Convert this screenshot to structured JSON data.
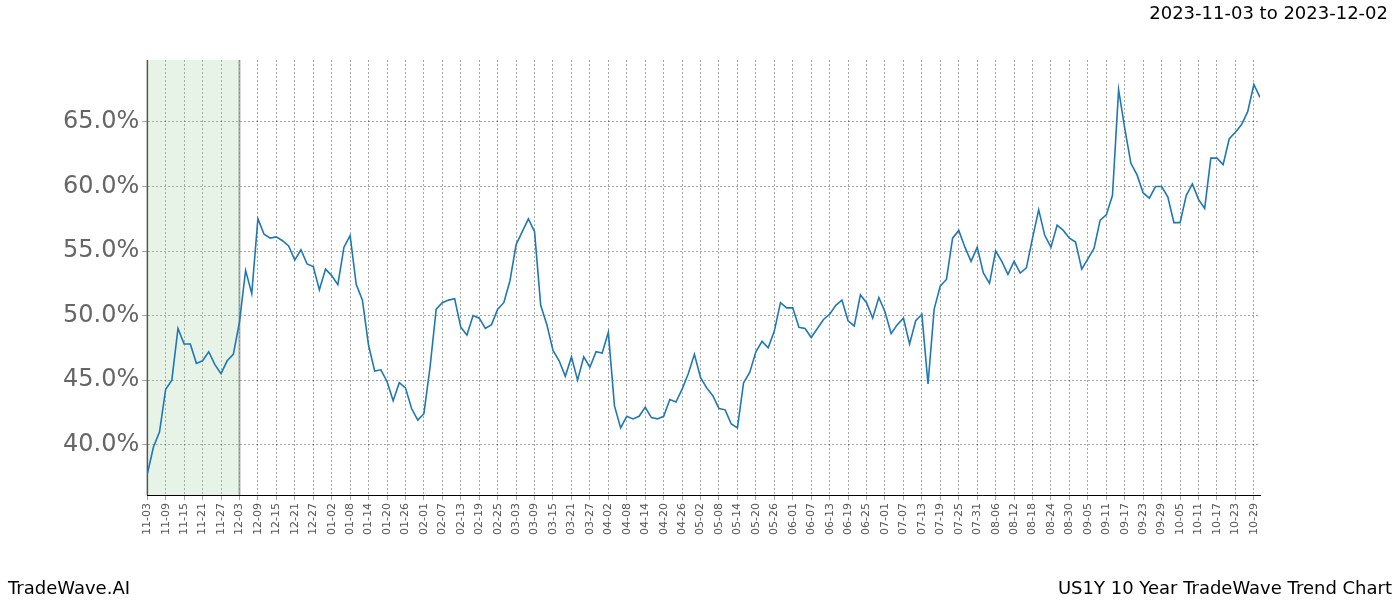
{
  "chart_data": {
    "type": "line",
    "title": "2023-11-03 to 2023-12-02",
    "footer_left": "TradeWave.AI",
    "footer_right": "US1Y 10 Year TradeWave Trend Chart",
    "shaded_range": [
      "11-03",
      "12-03"
    ],
    "color": "#1f77b4",
    "categories": [
      "11-03",
      null,
      null,
      "11-09",
      null,
      null,
      "11-15",
      null,
      null,
      "11-21",
      null,
      null,
      "11-27",
      null,
      null,
      "12-03",
      null,
      null,
      "12-09",
      null,
      null,
      "12-15",
      null,
      null,
      "12-21",
      null,
      null,
      "12-27",
      null,
      null,
      "01-02",
      null,
      null,
      "01-08",
      null,
      null,
      "01-14",
      null,
      null,
      "01-20",
      null,
      null,
      "01-26",
      null,
      null,
      "02-01",
      null,
      null,
      "02-07",
      null,
      null,
      "02-13",
      null,
      null,
      "02-19",
      null,
      null,
      "02-25",
      null,
      null,
      "03-03",
      null,
      null,
      "03-09",
      null,
      null,
      "03-15",
      null,
      null,
      "03-21",
      null,
      null,
      "03-27",
      null,
      null,
      "04-02",
      null,
      null,
      "04-08",
      null,
      null,
      "04-14",
      null,
      null,
      "04-20",
      null,
      null,
      "04-26",
      null,
      null,
      "05-02",
      null,
      null,
      "05-08",
      null,
      null,
      "05-14",
      null,
      null,
      "05-20",
      null,
      null,
      "05-26",
      null,
      null,
      "06-01",
      null,
      null,
      "06-07",
      null,
      null,
      "06-13",
      null,
      null,
      "06-19",
      null,
      null,
      "06-25",
      null,
      null,
      "07-01",
      null,
      null,
      "07-07",
      null,
      null,
      "07-13",
      null,
      null,
      "07-19",
      null,
      null,
      "07-25",
      null,
      null,
      "07-31",
      null,
      null,
      "08-06",
      null,
      null,
      "08-12",
      null,
      null,
      "08-18",
      null,
      null,
      "08-24",
      null,
      null,
      "08-30",
      null,
      null,
      "09-05",
      null,
      null,
      "09-11",
      null,
      null,
      "09-17",
      null,
      null,
      "09-23",
      null,
      null,
      "09-29",
      null,
      null,
      "10-05",
      null,
      null,
      "10-11",
      null,
      null,
      "10-17",
      null,
      null,
      "10-23",
      null,
      null,
      "10-29",
      null
    ],
    "values": [
      37.7,
      39.8,
      41,
      44.3,
      45,
      49,
      47.8,
      47.8,
      46.3,
      46.5,
      47.2,
      46.2,
      45.5,
      46.5,
      47,
      49.5,
      53.5,
      51.7,
      57.5,
      56.3,
      56,
      56.1,
      55.8,
      55.4,
      54.3,
      55.1,
      54,
      53.8,
      52,
      53.6,
      53.1,
      52.4,
      55.3,
      56.2,
      52.4,
      51.2,
      47.7,
      45.7,
      45.8,
      44.9,
      43.4,
      44.8,
      44.4,
      42.8,
      41.9,
      42.4,
      46,
      50.5,
      51,
      51.2,
      51.3,
      49.1,
      48.5,
      50,
      49.8,
      49,
      49.3,
      50.5,
      51,
      52.7,
      55.5,
      56.5,
      57.5,
      56.5,
      50.8,
      49.3,
      47.3,
      46.5,
      45.3,
      46.8,
      45,
      46.8,
      46,
      47.2,
      47.1,
      48.7,
      43,
      41.3,
      42.2,
      42,
      42.2,
      42.9,
      42.1,
      42,
      42.2,
      43.5,
      43.3,
      44.3,
      45.5,
      47,
      45.2,
      44.4,
      43.8,
      42.8,
      42.7,
      41.6,
      41.3,
      44.8,
      45.6,
      47.2,
      48,
      47.5,
      48.8,
      51,
      50.6,
      50.6,
      49.1,
      49,
      48.3,
      49,
      49.7,
      50.1,
      50.8,
      51.2,
      49.6,
      49.2,
      51.6,
      51,
      49.8,
      51.4,
      50.3,
      48.6,
      49.3,
      49.8,
      47.8,
      49.6,
      50.1,
      44.7,
      50.5,
      52.3,
      52.8,
      56,
      56.6,
      55.3,
      54.2,
      55.3,
      53.3,
      52.5,
      55,
      54.2,
      53.2,
      54.2,
      53.3,
      53.7,
      56,
      58.2,
      56.2,
      55.3,
      57,
      56.6,
      56,
      55.7,
      53.6,
      54.4,
      55.2,
      57.4,
      57.8,
      59.3,
      67.5,
      64.5,
      61.8,
      60.9,
      59.5,
      59.1,
      60,
      60,
      59.2,
      57.2,
      57.2,
      59.3,
      60.2,
      59,
      58.3,
      62.2,
      62.2,
      61.7,
      63.7,
      64.2,
      64.8,
      65.8,
      67.9,
      66.9
    ],
    "ylim": [
      36.1,
      69.8
    ],
    "yticks": [
      {
        "value": 40,
        "label": "40.0%"
      },
      {
        "value": 45,
        "label": "45.0%"
      },
      {
        "value": 50,
        "label": "50.0%"
      },
      {
        "value": 55,
        "label": "55.0%"
      },
      {
        "value": 60,
        "label": "60.0%"
      },
      {
        "value": 65,
        "label": "65.0%"
      }
    ],
    "grid": true
  }
}
